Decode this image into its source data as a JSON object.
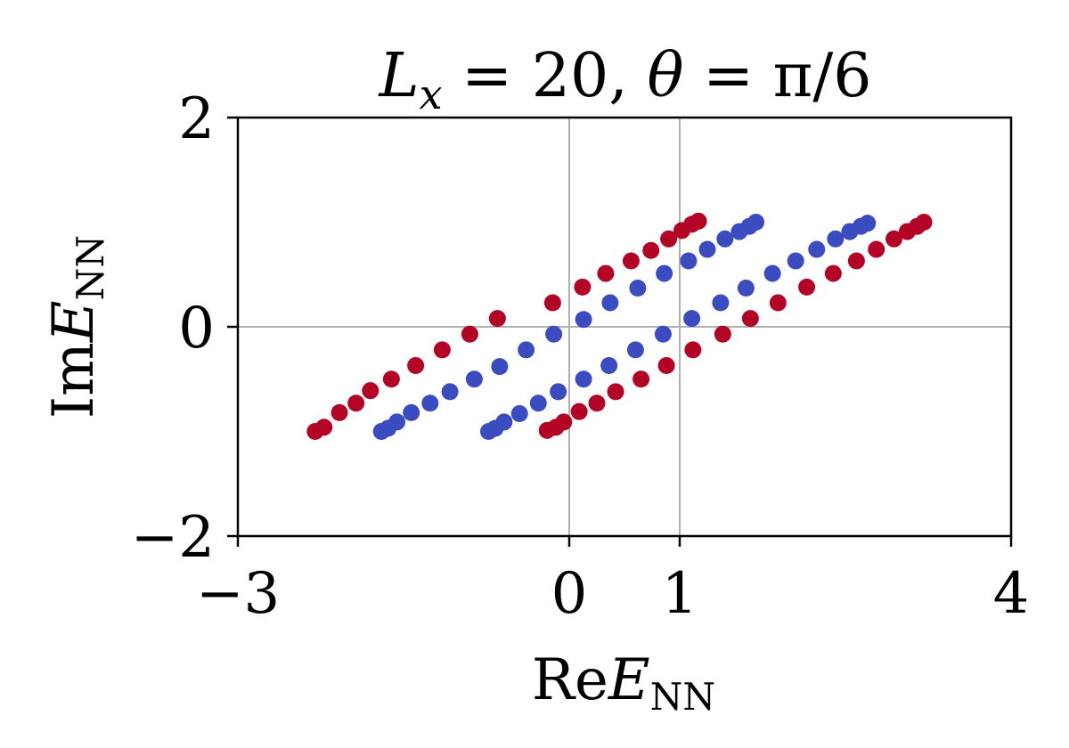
{
  "chart_data": {
    "type": "scatter",
    "title": {
      "lhs": "L",
      "lhs_sub": "x",
      "rest": " = 20, ",
      "theta": "θ",
      "rest2": " = π/6"
    },
    "xlabel": {
      "prefix": "Re",
      "var": "E",
      "sub": "NN"
    },
    "ylabel": {
      "prefix": "Im",
      "var": "E",
      "sub": "NN"
    },
    "xlim": [
      -3,
      4
    ],
    "ylim": [
      -2,
      2
    ],
    "xticks": [
      -3,
      0,
      1,
      4
    ],
    "yticks": [
      -2,
      0,
      2
    ],
    "xtick_labels": [
      "−3",
      "0",
      "1",
      "4"
    ],
    "ytick_labels": [
      "−2",
      "0",
      "2"
    ],
    "grid_x": [
      0,
      1
    ],
    "grid_y": [
      0
    ],
    "colors": {
      "red": "#b40426",
      "blue": "#3b4cc0",
      "grid": "#b0b0b0"
    },
    "series": [
      {
        "color": "#b40426",
        "points": [
          [
            -2.3,
            -1.0
          ],
          [
            -2.22,
            -0.96
          ],
          [
            -2.08,
            -0.82
          ],
          [
            -1.93,
            -0.73
          ],
          [
            -1.8,
            -0.61
          ],
          [
            -1.61,
            -0.5
          ],
          [
            -1.39,
            -0.37
          ],
          [
            -1.15,
            -0.22
          ],
          [
            -0.9,
            -0.07
          ],
          [
            -0.65,
            0.08
          ],
          [
            -0.15,
            0.23
          ],
          [
            0.12,
            0.38
          ],
          [
            0.33,
            0.51
          ],
          [
            0.56,
            0.63
          ],
          [
            0.74,
            0.73
          ],
          [
            0.9,
            0.84
          ],
          [
            1.02,
            0.92
          ],
          [
            1.11,
            0.98
          ],
          [
            1.17,
            1.01
          ],
          [
            -0.2,
            -0.99
          ],
          [
            -0.12,
            -0.96
          ],
          [
            -0.05,
            -0.91
          ],
          [
            0.09,
            -0.81
          ],
          [
            0.25,
            -0.73
          ],
          [
            0.42,
            -0.62
          ],
          [
            0.65,
            -0.5
          ],
          [
            0.88,
            -0.37
          ],
          [
            1.12,
            -0.22
          ],
          [
            1.39,
            -0.07
          ],
          [
            1.64,
            0.08
          ],
          [
            1.89,
            0.23
          ],
          [
            2.15,
            0.38
          ],
          [
            2.39,
            0.51
          ],
          [
            2.6,
            0.63
          ],
          [
            2.78,
            0.74
          ],
          [
            2.94,
            0.84
          ],
          [
            3.06,
            0.91
          ],
          [
            3.15,
            0.96
          ],
          [
            3.21,
            1.0
          ]
        ]
      },
      {
        "color": "#3b4cc0",
        "points": [
          [
            -1.7,
            -1.0
          ],
          [
            -1.64,
            -0.97
          ],
          [
            -1.56,
            -0.91
          ],
          [
            -1.43,
            -0.82
          ],
          [
            -1.26,
            -0.73
          ],
          [
            -1.08,
            -0.62
          ],
          [
            -0.86,
            -0.5
          ],
          [
            -0.63,
            -0.38
          ],
          [
            -0.39,
            -0.22
          ],
          [
            -0.14,
            -0.07
          ],
          [
            0.13,
            0.07
          ],
          [
            0.37,
            0.23
          ],
          [
            0.62,
            0.37
          ],
          [
            0.86,
            0.51
          ],
          [
            1.08,
            0.63
          ],
          [
            1.25,
            0.74
          ],
          [
            1.41,
            0.84
          ],
          [
            1.54,
            0.91
          ],
          [
            1.63,
            0.96
          ],
          [
            1.69,
            1.0
          ],
          [
            -0.73,
            -1.0
          ],
          [
            -0.67,
            -0.97
          ],
          [
            -0.59,
            -0.91
          ],
          [
            -0.45,
            -0.83
          ],
          [
            -0.28,
            -0.73
          ],
          [
            -0.1,
            -0.62
          ],
          [
            0.13,
            -0.5
          ],
          [
            0.36,
            -0.37
          ],
          [
            0.6,
            -0.22
          ],
          [
            0.85,
            -0.07
          ],
          [
            1.11,
            0.08
          ],
          [
            1.37,
            0.23
          ],
          [
            1.6,
            0.37
          ],
          [
            1.84,
            0.51
          ],
          [
            2.05,
            0.63
          ],
          [
            2.24,
            0.74
          ],
          [
            2.41,
            0.84
          ],
          [
            2.54,
            0.91
          ],
          [
            2.64,
            0.96
          ],
          [
            2.7,
            0.99
          ]
        ]
      }
    ]
  }
}
